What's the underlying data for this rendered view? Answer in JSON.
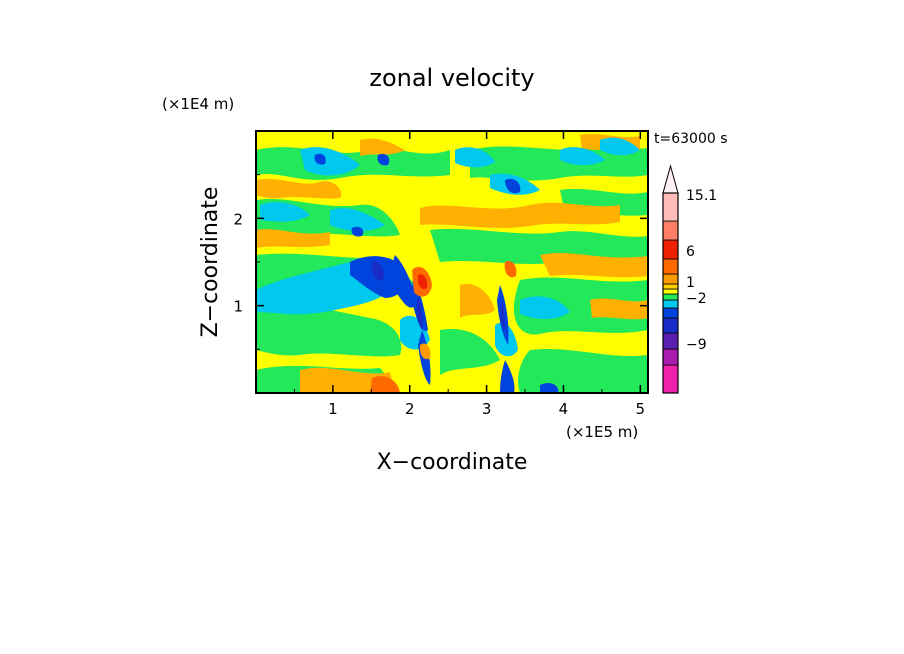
{
  "chart_data": {
    "type": "heatmap",
    "title": "zonal velocity",
    "xlabel": "X−coordinate",
    "ylabel": "Z−coordinate",
    "x_unit": "(×1E5 m)",
    "y_unit": "(×1E4 m)",
    "time_label": "t=63000 s",
    "xlim": [
      0,
      5.1
    ],
    "ylim": [
      0,
      3.0
    ],
    "x_ticks": [
      1,
      2,
      3,
      4,
      5
    ],
    "y_ticks": [
      1,
      2
    ],
    "grid": false,
    "colorbar": {
      "extend_max": true,
      "levels": [
        {
          "color": "#ee22aa"
        },
        {
          "color": "#a81cae"
        },
        {
          "color": "#5a1fb0"
        },
        {
          "color": "#1a2cc8"
        },
        {
          "color": "#0044dd"
        },
        {
          "color": "#00c8ee"
        },
        {
          "color": "#22e85a"
        },
        {
          "color": "#ffff00"
        },
        {
          "color": "#ffd000"
        },
        {
          "color": "#ff9a00"
        },
        {
          "color": "#ff6a00"
        },
        {
          "color": "#ee2200"
        },
        {
          "color": "#ff7e66"
        },
        {
          "color": "#ffbcb8"
        }
      ],
      "tick_labels": [
        "15.1",
        "6",
        "1",
        "−2",
        "−9"
      ],
      "arrow_color": "#fff0f5"
    },
    "field_description_values": {
      "background_level": "yellow/green (about -2 to 1)",
      "strong_negative_columns_x": [
        2.1,
        3.3
      ],
      "strong_positive_near": {
        "x": 2.2,
        "z": 1.2
      }
    }
  }
}
